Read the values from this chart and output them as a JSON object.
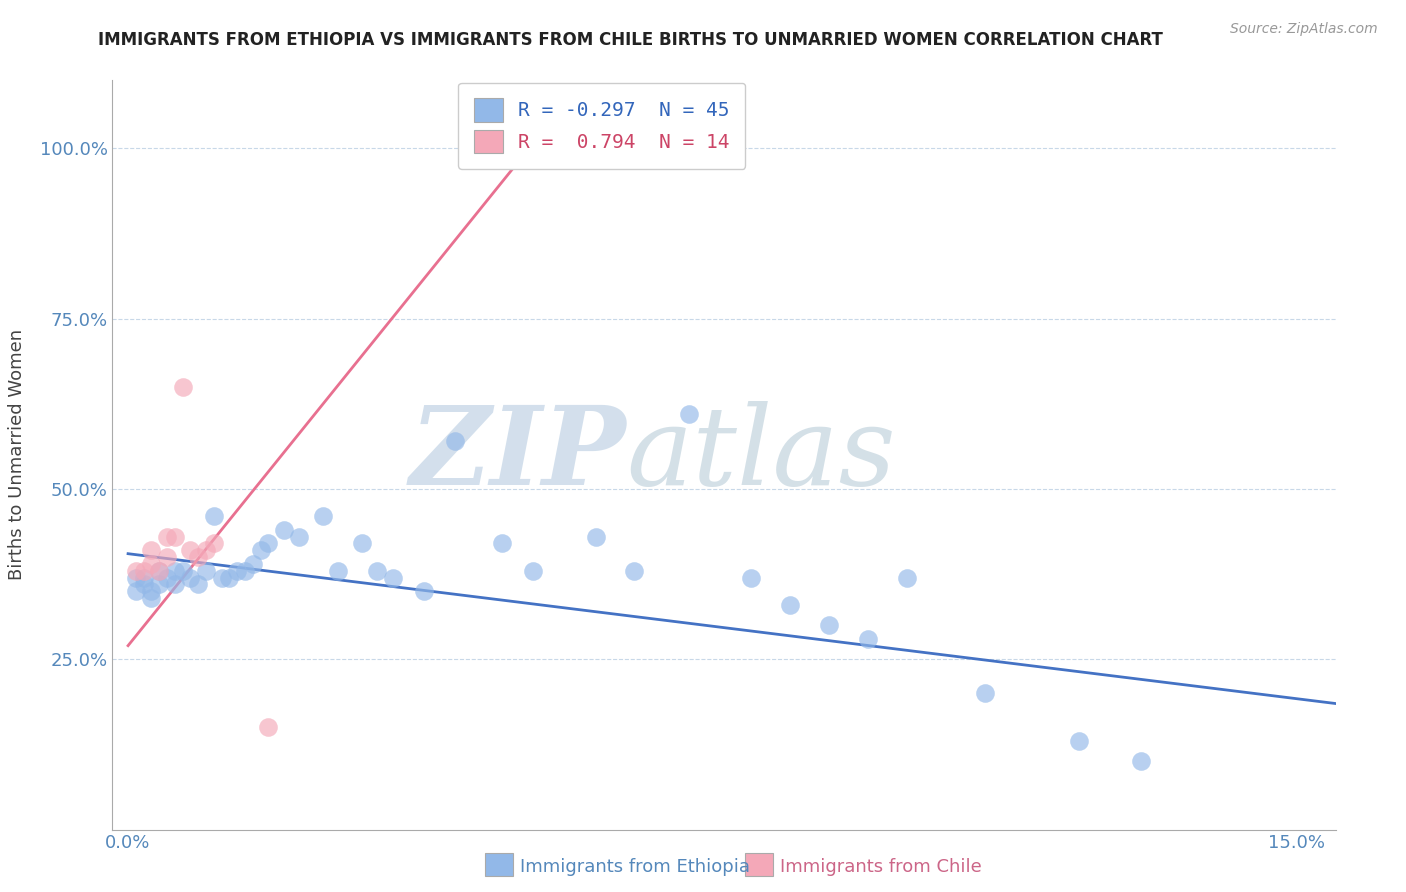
{
  "title": "IMMIGRANTS FROM ETHIOPIA VS IMMIGRANTS FROM CHILE BIRTHS TO UNMARRIED WOMEN CORRELATION CHART",
  "source": "Source: ZipAtlas.com",
  "ylabel": "Births to Unmarried Women",
  "y_ticks": [
    0.25,
    0.5,
    0.75,
    1.0
  ],
  "y_tick_labels": [
    "25.0%",
    "50.0%",
    "75.0%",
    "100.0%"
  ],
  "x_ticks": [
    0.0,
    0.015,
    0.03,
    0.045,
    0.06,
    0.075,
    0.09,
    0.105,
    0.12,
    0.135,
    0.15
  ],
  "x_tick_labels_show": [
    "0.0%",
    "",
    "",
    "",
    "",
    "",
    "",
    "",
    "",
    "",
    "15.0%"
  ],
  "xlim": [
    -0.002,
    0.155
  ],
  "ylim": [
    0.0,
    1.1
  ],
  "legend_ethiopia": "R = -0.297  N = 45",
  "legend_chile": "R =  0.794  N = 14",
  "ethiopia_color": "#92b8e8",
  "chile_color": "#f4a8b8",
  "trendline_ethiopia_color": "#4472c4",
  "trendline_chile_color": "#e87090",
  "grid_color": "#c8d8e8",
  "background_color": "#ffffff",
  "watermark_zip": "ZIP",
  "watermark_atlas": "atlas",
  "ethiopia_x": [
    0.001,
    0.001,
    0.002,
    0.002,
    0.003,
    0.003,
    0.004,
    0.004,
    0.005,
    0.006,
    0.006,
    0.007,
    0.008,
    0.009,
    0.01,
    0.011,
    0.012,
    0.013,
    0.014,
    0.015,
    0.016,
    0.017,
    0.018,
    0.02,
    0.022,
    0.025,
    0.027,
    0.03,
    0.032,
    0.034,
    0.038,
    0.042,
    0.048,
    0.052,
    0.06,
    0.065,
    0.072,
    0.08,
    0.085,
    0.09,
    0.095,
    0.1,
    0.11,
    0.122,
    0.13
  ],
  "ethiopia_y": [
    0.37,
    0.35,
    0.37,
    0.36,
    0.35,
    0.34,
    0.36,
    0.38,
    0.37,
    0.36,
    0.38,
    0.38,
    0.37,
    0.36,
    0.38,
    0.46,
    0.37,
    0.37,
    0.38,
    0.38,
    0.39,
    0.41,
    0.42,
    0.44,
    0.43,
    0.46,
    0.38,
    0.42,
    0.38,
    0.37,
    0.35,
    0.57,
    0.42,
    0.38,
    0.43,
    0.38,
    0.61,
    0.37,
    0.33,
    0.3,
    0.28,
    0.37,
    0.2,
    0.13,
    0.1
  ],
  "chile_x": [
    0.001,
    0.002,
    0.003,
    0.003,
    0.004,
    0.005,
    0.005,
    0.006,
    0.007,
    0.008,
    0.009,
    0.01,
    0.011,
    0.018
  ],
  "chile_y": [
    0.38,
    0.38,
    0.39,
    0.41,
    0.38,
    0.4,
    0.43,
    0.43,
    0.65,
    0.41,
    0.4,
    0.41,
    0.42,
    0.15
  ],
  "trendline_eth_x0": 0.0,
  "trendline_eth_x1": 0.155,
  "trendline_eth_y0": 0.405,
  "trendline_eth_y1": 0.185,
  "trendline_chile_x0": 0.0,
  "trendline_chile_x1": 0.055,
  "trendline_chile_y0": 0.27,
  "trendline_chile_y1": 1.05
}
